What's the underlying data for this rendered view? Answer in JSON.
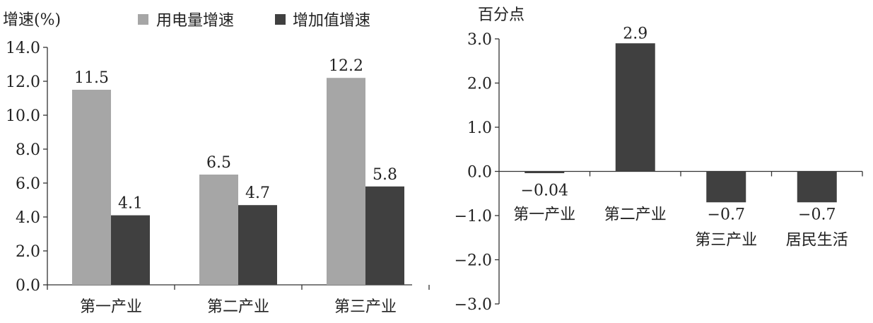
{
  "chart_data": [
    {
      "type": "bar",
      "ylabel": "增速(%)",
      "ylim": [
        0,
        14
      ],
      "yticks": [
        "0.0",
        "2.0",
        "4.0",
        "6.0",
        "8.0",
        "10.0",
        "12.0",
        "14.0"
      ],
      "categories": [
        "第一产业",
        "第二产业",
        "第三产业"
      ],
      "series": [
        {
          "name": "用电量增速",
          "values": [
            11.5,
            6.5,
            12.2
          ],
          "labels": [
            "11.5",
            "6.5",
            "12.2"
          ],
          "color": "#a6a6a6"
        },
        {
          "name": "增加值增速",
          "values": [
            4.1,
            4.7,
            5.8
          ],
          "labels": [
            "4.1",
            "4.7",
            "5.8"
          ],
          "color": "#404040"
        }
      ],
      "legend": "top",
      "grid": false
    },
    {
      "type": "bar",
      "ylabel": "百分点",
      "ylim": [
        -3,
        3
      ],
      "yticks": [
        "−3.0",
        "−2.0",
        "−1.0",
        "0.0",
        "1.0",
        "2.0",
        "3.0"
      ],
      "categories": [
        "第一产业",
        "第二产业",
        "第三产业",
        "居民生活"
      ],
      "values": [
        -0.04,
        2.9,
        -0.7,
        -0.7
      ],
      "labels": [
        "−0.04",
        "2.9",
        "−0.7",
        "−0.7"
      ],
      "color": "#404040",
      "grid": false
    }
  ]
}
